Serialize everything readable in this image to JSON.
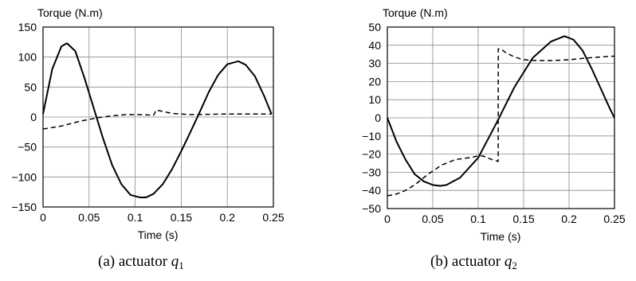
{
  "chart_data": [
    {
      "type": "line",
      "ylabel": "Torque (N.m)",
      "xlabel": "Time (s)",
      "caption_prefix": "(a) actuator ",
      "caption_var": "q",
      "caption_sub": "1",
      "xlim": [
        0,
        0.25
      ],
      "ylim": [
        -150,
        150
      ],
      "xticks": [
        0,
        0.05,
        0.1,
        0.15,
        0.2,
        0.25
      ],
      "xtick_labels": [
        "0",
        "0.05",
        "0.1",
        "0.15",
        "0.2",
        "0.25"
      ],
      "yticks": [
        150,
        100,
        50,
        0,
        -50,
        -100,
        -150
      ],
      "ytick_labels": [
        "150",
        "100",
        "50",
        "0",
        "−50",
        "−100",
        "−150"
      ],
      "grid": true,
      "series": [
        {
          "style": "solid",
          "x": [
            0,
            0.01,
            0.02,
            0.026,
            0.035,
            0.045,
            0.055,
            0.065,
            0.075,
            0.085,
            0.095,
            0.105,
            0.112,
            0.12,
            0.13,
            0.14,
            0.15,
            0.16,
            0.17,
            0.18,
            0.19,
            0.2,
            0.212,
            0.22,
            0.23,
            0.24,
            0.248
          ],
          "y": [
            5,
            80,
            118,
            123,
            110,
            65,
            15,
            -35,
            -80,
            -112,
            -130,
            -134,
            -134,
            -128,
            -112,
            -87,
            -57,
            -25,
            8,
            42,
            70,
            88,
            93,
            87,
            68,
            35,
            5
          ]
        },
        {
          "style": "dashed",
          "x": [
            0,
            0.02,
            0.04,
            0.06,
            0.075,
            0.09,
            0.105,
            0.12,
            0.123,
            0.125,
            0.14,
            0.16,
            0.2,
            0.248
          ],
          "y": [
            -20,
            -15,
            -7,
            -1,
            2,
            4,
            4,
            3,
            12,
            11,
            6,
            4,
            5,
            5
          ]
        }
      ]
    },
    {
      "type": "line",
      "ylabel": "Torque (N.m)",
      "xlabel": "Time (s)",
      "caption_prefix": "(b) actuator ",
      "caption_var": "q",
      "caption_sub": "2",
      "xlim": [
        0,
        0.25
      ],
      "ylim": [
        -50,
        50
      ],
      "xticks": [
        0,
        0.05,
        0.1,
        0.15,
        0.2,
        0.25
      ],
      "xtick_labels": [
        "0",
        "0.05",
        "0.1",
        "0.15",
        "0.2",
        "0.25"
      ],
      "yticks": [
        50,
        40,
        30,
        20,
        10,
        0,
        -10,
        -20,
        -30,
        -40,
        -50
      ],
      "ytick_labels": [
        "50",
        "40",
        "30",
        "20",
        "10",
        "0",
        "−10",
        "−20",
        "−30",
        "−40",
        "−50"
      ],
      "grid": true,
      "series": [
        {
          "style": "solid",
          "x": [
            0,
            0.01,
            0.02,
            0.03,
            0.04,
            0.05,
            0.058,
            0.065,
            0.08,
            0.1,
            0.12,
            0.14,
            0.16,
            0.18,
            0.195,
            0.205,
            0.215,
            0.225,
            0.235,
            0.245,
            0.25
          ],
          "y": [
            0,
            -13,
            -23,
            -31,
            -35,
            -37,
            -37.5,
            -37,
            -33,
            -22,
            -3,
            17,
            33,
            42,
            45,
            43,
            37,
            27,
            16,
            5,
            0
          ],
          "_note": ""
        },
        {
          "style": "dashed",
          "x": [
            0,
            0.01,
            0.02,
            0.03,
            0.045,
            0.06,
            0.075,
            0.09,
            0.1,
            0.105,
            0.115,
            0.122,
            0.1221,
            0.125,
            0.13,
            0.14,
            0.15,
            0.165,
            0.18,
            0.2,
            0.22,
            0.25
          ],
          "y": [
            -43,
            -42,
            -40,
            -37,
            -31,
            -26,
            -23,
            -22,
            -21,
            -21,
            -23,
            -24,
            38,
            38,
            36,
            33.5,
            32,
            31.5,
            31.5,
            32,
            33,
            34
          ]
        }
      ]
    }
  ]
}
